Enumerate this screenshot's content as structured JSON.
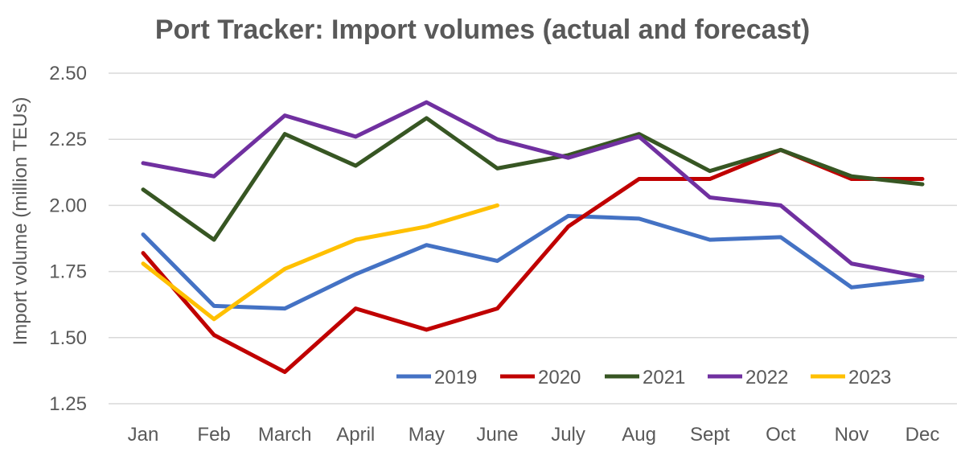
{
  "chart_data": {
    "type": "line",
    "title": "Port Tracker: Import volumes (actual and forecast)",
    "xlabel": "",
    "ylabel": "Import volume (million TEUs)",
    "categories": [
      "Jan",
      "Feb",
      "March",
      "April",
      "May",
      "June",
      "July",
      "Aug",
      "Sept",
      "Oct",
      "Nov",
      "Dec"
    ],
    "ylim": [
      1.25,
      2.5
    ],
    "yticks": [
      1.25,
      1.5,
      1.75,
      2.0,
      2.25,
      2.5
    ],
    "ytick_labels": [
      "1.25",
      "1.50",
      "1.75",
      "2.00",
      "2.25",
      "2.50"
    ],
    "grid": true,
    "legend_position": "bottom-right",
    "series": [
      {
        "name": "2019",
        "color": "#4472c4",
        "values": [
          1.89,
          1.62,
          1.61,
          1.74,
          1.85,
          1.79,
          1.96,
          1.95,
          1.87,
          1.88,
          1.69,
          1.72
        ]
      },
      {
        "name": "2020",
        "color": "#c00000",
        "values": [
          1.82,
          1.51,
          1.37,
          1.61,
          1.53,
          1.61,
          1.92,
          2.1,
          2.1,
          2.21,
          2.1,
          2.1
        ]
      },
      {
        "name": "2021",
        "color": "#375623",
        "values": [
          2.06,
          1.87,
          2.27,
          2.15,
          2.33,
          2.14,
          2.19,
          2.27,
          2.13,
          2.21,
          2.11,
          2.08
        ]
      },
      {
        "name": "2022",
        "color": "#7030a0",
        "values": [
          2.16,
          2.11,
          2.34,
          2.26,
          2.39,
          2.25,
          2.18,
          2.26,
          2.03,
          2.0,
          1.78,
          1.73
        ]
      },
      {
        "name": "2023",
        "color": "#ffc000",
        "values": [
          1.78,
          1.57,
          1.76,
          1.87,
          1.92,
          2.0,
          null,
          null,
          null,
          null,
          null,
          null
        ]
      }
    ]
  }
}
